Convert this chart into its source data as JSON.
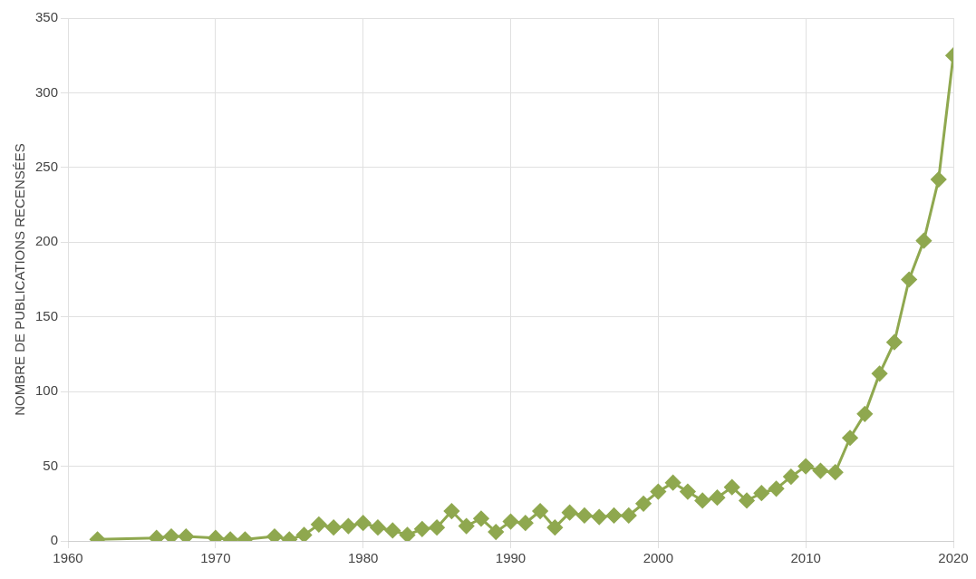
{
  "chart_data": {
    "type": "line",
    "ylabel": "NOMBRE DE PUBLICATIONS RECENSÉES",
    "x": [
      1962,
      1966,
      1967,
      1968,
      1970,
      1971,
      1972,
      1974,
      1975,
      1976,
      1977,
      1978,
      1979,
      1980,
      1981,
      1982,
      1983,
      1984,
      1985,
      1986,
      1987,
      1988,
      1989,
      1990,
      1991,
      1992,
      1993,
      1994,
      1995,
      1996,
      1997,
      1998,
      1999,
      2000,
      2001,
      2002,
      2003,
      2004,
      2005,
      2006,
      2007,
      2008,
      2009,
      2010,
      2011,
      2012,
      2013,
      2014,
      2015,
      2016,
      2017,
      2018,
      2019,
      2020
    ],
    "series": [
      {
        "color": "#8fa84f",
        "values": [
          1,
          2,
          3,
          3,
          2,
          1,
          1,
          3,
          1,
          4,
          11,
          9,
          10,
          12,
          9,
          7,
          4,
          8,
          9,
          20,
          10,
          15,
          6,
          13,
          12,
          20,
          9,
          19,
          17,
          16,
          17,
          17,
          25,
          33,
          39,
          33,
          27,
          29,
          36,
          27,
          32,
          35,
          43,
          50,
          47,
          46,
          69,
          85,
          112,
          133,
          175,
          201,
          242,
          325
        ]
      }
    ],
    "xlim": [
      1960,
      2020
    ],
    "xticks": [
      1960,
      1970,
      1980,
      1990,
      2000,
      2010,
      2020
    ],
    "ylim": [
      0,
      350
    ],
    "yticks": [
      0,
      50,
      100,
      150,
      200,
      250,
      300,
      350
    ],
    "grid": true,
    "legend": false,
    "marker": "diamond",
    "line_style": "solid"
  }
}
